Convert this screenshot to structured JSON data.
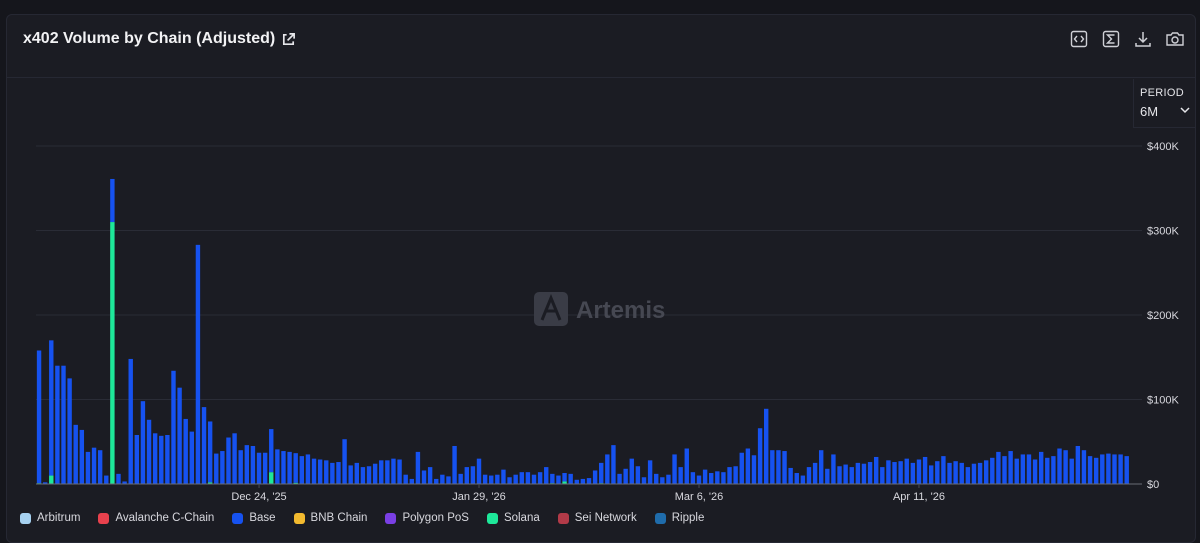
{
  "header": {
    "title": "x402 Volume by Chain (Adjusted)",
    "toolbar_icons": [
      "embed-icon",
      "sum-icon",
      "download-icon",
      "camera-icon"
    ]
  },
  "period": {
    "label": "PERIOD",
    "value": "6M"
  },
  "watermark": "Artemis",
  "colors": {
    "Arbitrum": "#a6d1f0",
    "Avalanche C-Chain": "#e8414d",
    "Base": "#1652f0",
    "BNB Chain": "#f3ba2f",
    "Polygon PoS": "#7a3fe4",
    "Solana": "#1ee89a",
    "Sei Network": "#b23a48",
    "Ripple": "#1f6cab"
  },
  "chart_data": {
    "type": "bar",
    "stacked": true,
    "y_axis": {
      "position": "right",
      "ticks": [
        "$0",
        "$100K",
        "$200K",
        "$300K",
        "$400K"
      ],
      "ylim": [
        0,
        400000
      ]
    },
    "x_axis": {
      "tick_labels": [
        "Dec 24, '25",
        "Jan 29, '26",
        "Mar 6, '26",
        "Apr 11, '26"
      ],
      "tick_indices": [
        36,
        72,
        108,
        144
      ]
    },
    "legend": [
      "Arbitrum",
      "Avalanche C-Chain",
      "Base",
      "BNB Chain",
      "Polygon PoS",
      "Solana",
      "Sei Network",
      "Ripple"
    ],
    "grid": true,
    "n_bars": 181,
    "series": [
      {
        "name": "Base",
        "values": [
          157000,
          2000,
          160000,
          140000,
          140000,
          125000,
          70000,
          64000,
          38000,
          43000,
          40000,
          10000,
          51000,
          12000,
          3000,
          148000,
          58000,
          98000,
          76000,
          60000,
          57000,
          58000,
          134000,
          114000,
          77000,
          62000,
          283000,
          91000,
          72000,
          36000,
          39000,
          55000,
          60000,
          40000,
          46000,
          45000,
          37000,
          37000,
          51000,
          41000,
          39000,
          38000,
          35000,
          33000,
          35000,
          30000,
          29000,
          28000,
          25000,
          26000,
          53000,
          22000,
          25000,
          20000,
          21000,
          24000,
          28000,
          28000,
          30000,
          29000,
          11000,
          6000,
          38000,
          16000,
          20000,
          6000,
          11000,
          9000,
          45000,
          12000,
          20000,
          21000,
          30000,
          11000,
          10000,
          11000,
          17000,
          8000,
          11000,
          14000,
          14000,
          11000,
          14000,
          20000,
          11000,
          10000,
          10000,
          12000,
          5000,
          6000,
          7000,
          16000,
          24000,
          35000,
          46000,
          12000,
          18000,
          30000,
          21000,
          8000,
          28000,
          12000,
          8000,
          11000,
          35000,
          20000,
          42000,
          14000,
          10000,
          17000,
          13000,
          15000,
          14000,
          20000,
          21000,
          37000,
          42000,
          34000,
          66000,
          89000,
          40000,
          40000,
          39000,
          19000,
          13000,
          10000,
          20000,
          25000,
          40000,
          18000,
          35000,
          21000,
          23000,
          20000,
          25000,
          24000,
          26000,
          32000,
          20000,
          28000,
          26000,
          27000,
          30000,
          25000,
          29000,
          32000,
          22000,
          27000,
          33000,
          25000,
          27000,
          25000,
          20000,
          24000,
          25000,
          28000,
          31000,
          38000,
          33000,
          39000,
          30000,
          35000,
          35000,
          29000,
          38000,
          31000,
          33000,
          42000,
          40000,
          30000,
          45000,
          40000,
          33000,
          31000,
          35000,
          36000,
          35000,
          35000,
          33000
        ]
      },
      {
        "name": "Solana",
        "values": [
          1000,
          0,
          10000,
          0,
          0,
          0,
          0,
          0,
          0,
          0,
          0,
          0,
          310000,
          0,
          0,
          0,
          0,
          0,
          0,
          0,
          0,
          0,
          0,
          0,
          0,
          0,
          0,
          0,
          2000,
          0,
          0,
          0,
          0,
          0,
          0,
          0,
          0,
          0,
          14000,
          0,
          0,
          0,
          1500,
          0,
          0,
          0,
          0,
          0,
          0,
          0,
          0,
          0,
          0,
          0,
          0,
          0,
          0,
          0,
          0,
          0,
          0,
          0,
          0,
          0,
          0,
          0,
          0,
          0,
          0,
          0,
          0,
          0,
          0,
          0,
          0,
          0,
          0,
          0,
          0,
          0,
          0,
          0,
          0,
          0,
          1000,
          0,
          3000,
          0,
          0,
          0,
          0,
          0,
          1000,
          0,
          0,
          0,
          0,
          0,
          0,
          0,
          0,
          0,
          0,
          0,
          0,
          0,
          0,
          0,
          0,
          0,
          0,
          0,
          0,
          0,
          0,
          0,
          0,
          0,
          0,
          0,
          0,
          0,
          0,
          0,
          0,
          0,
          0,
          0,
          0,
          0,
          0,
          0,
          0,
          0,
          0,
          0,
          0,
          0,
          0,
          0,
          0,
          0,
          0,
          0,
          0,
          0,
          0,
          0,
          0,
          0,
          0,
          0,
          0,
          0,
          0,
          0,
          0,
          0,
          0,
          0,
          0,
          0,
          0,
          0,
          0,
          0,
          0,
          0,
          0,
          0,
          0,
          0,
          0,
          0,
          0,
          0,
          0,
          0,
          0,
          0,
          0,
          0,
          0
        ]
      },
      {
        "name": "Polygon PoS",
        "values": [
          0,
          0,
          0,
          0,
          0,
          0,
          0,
          0,
          0,
          0,
          0,
          0,
          0,
          0,
          0,
          0,
          0,
          0,
          0,
          0,
          0,
          0,
          0,
          0,
          0,
          0,
          0,
          0,
          0,
          0,
          0,
          0,
          0,
          0,
          0,
          0,
          0,
          0,
          0,
          0,
          0,
          0,
          0,
          0,
          0,
          0,
          0,
          0,
          0,
          0,
          0,
          0,
          0,
          0,
          0,
          0,
          0,
          0,
          0,
          0,
          0,
          0,
          0,
          0,
          0,
          0,
          0,
          0,
          0,
          0,
          0,
          0,
          0,
          0,
          0,
          0,
          0,
          0,
          0,
          0,
          0,
          0,
          0,
          0,
          0,
          0,
          0,
          0,
          0,
          0,
          0,
          0,
          0,
          0,
          0,
          0,
          0,
          0,
          0,
          0,
          0,
          0,
          0,
          0,
          0,
          0,
          0,
          0,
          0,
          0,
          0,
          0,
          0,
          0,
          0,
          0,
          0,
          0,
          0,
          0,
          0,
          0,
          0,
          0,
          0,
          0,
          0,
          0,
          0,
          0,
          0,
          0,
          0,
          0,
          0,
          0,
          0,
          0,
          0,
          0,
          0,
          0,
          0,
          0,
          0,
          0,
          0,
          0,
          0,
          0,
          0,
          0,
          0,
          0,
          0,
          0,
          0,
          0,
          0,
          0,
          0,
          0,
          0,
          0,
          0,
          0,
          0,
          0,
          0,
          0,
          0,
          0,
          0,
          0,
          0,
          0,
          0,
          0,
          0,
          0,
          0
        ]
      }
    ]
  }
}
